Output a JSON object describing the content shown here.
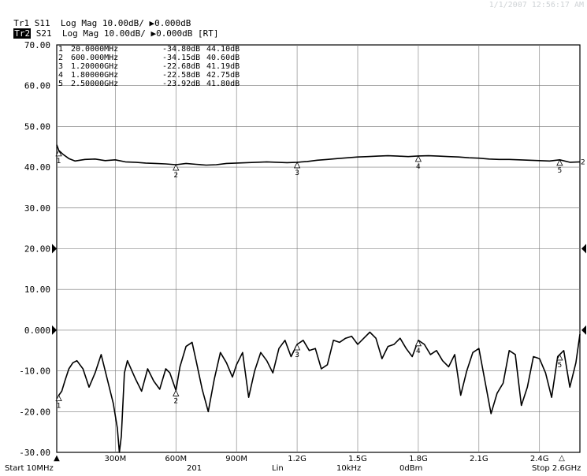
{
  "timestamp": "1/1/2007 12:56:17 AM",
  "header": {
    "trace1": {
      "tag": "Tr1",
      "text": " S11  Log Mag 10.00dB/ ▶0.000dB"
    },
    "trace2": {
      "tag": "Tr2",
      "text": " S21  Log Mag 10.00dB/ ▶0.000dB [RT]"
    }
  },
  "markers_table": [
    {
      "num": "1",
      "freq": "20.0000MHz",
      "v1": "-34.80dB",
      "v2": "44.10dB"
    },
    {
      "num": "2",
      "freq": "600.000MHz",
      "v1": "-34.15dB",
      "v2": "40.60dB"
    },
    {
      "num": "3",
      "freq": "1.20000GHz",
      "v1": "-22.68dB",
      "v2": "41.19dB"
    },
    {
      "num": "4",
      "freq": "1.80000GHz",
      "v1": "-22.58dB",
      "v2": "42.75dB"
    },
    {
      "num": "5",
      "freq": "2.50000GHz",
      "v1": "-23.92dB",
      "v2": "41.80dB"
    }
  ],
  "footer": {
    "start": "Start 10MHz",
    "points": "201",
    "sweep": "Lin",
    "ifbw": "10kHz",
    "power": "0dBm",
    "stop": "Stop 2.6GHz"
  },
  "chart_data": {
    "type": "line",
    "xlim": [
      10,
      2600
    ],
    "ylim": [
      -30,
      70
    ],
    "grid": true,
    "y_ticks": [
      "70.00",
      "60.00",
      "50.00",
      "40.00",
      "30.00",
      "20.00",
      "10.00",
      "0.000",
      "-10.00",
      "-20.00",
      "-30.00"
    ],
    "x_tick_labels": [
      "300M",
      "600M",
      "900M",
      "1.2G",
      "1.5G",
      "1.8G",
      "2.1G",
      "2.4G"
    ],
    "x_tick_values": [
      300,
      600,
      900,
      1200,
      1500,
      1800,
      2100,
      2400
    ],
    "series": [
      {
        "x": [
          10,
          20,
          40,
          70,
          100,
          150,
          200,
          250,
          300,
          350,
          400,
          450,
          500,
          550,
          600,
          650,
          700,
          750,
          800,
          850,
          900,
          950,
          1000,
          1050,
          1100,
          1150,
          1200,
          1250,
          1300,
          1350,
          1400,
          1450,
          1500,
          1550,
          1600,
          1650,
          1700,
          1750,
          1800,
          1850,
          1900,
          1950,
          2000,
          2050,
          2100,
          2150,
          2200,
          2250,
          2300,
          2350,
          2400,
          2450,
          2500,
          2550,
          2600
        ],
        "values": [
          45.5,
          44.1,
          43.2,
          42.1,
          41.5,
          41.9,
          42.0,
          41.6,
          41.8,
          41.3,
          41.2,
          41.0,
          40.9,
          40.8,
          40.6,
          40.9,
          40.7,
          40.5,
          40.6,
          40.9,
          41.0,
          41.1,
          41.2,
          41.3,
          41.2,
          41.1,
          41.19,
          41.4,
          41.7,
          41.9,
          42.1,
          42.3,
          42.5,
          42.6,
          42.7,
          42.8,
          42.7,
          42.6,
          42.75,
          42.8,
          42.7,
          42.6,
          42.5,
          42.3,
          42.2,
          42.0,
          41.9,
          41.9,
          41.8,
          41.7,
          41.6,
          41.5,
          41.8,
          41.2,
          41.3
        ]
      },
      {
        "x": [
          10,
          20,
          35,
          50,
          70,
          90,
          110,
          140,
          170,
          200,
          230,
          260,
          290,
          310,
          320,
          330,
          345,
          360,
          400,
          430,
          460,
          490,
          520,
          550,
          570,
          600,
          620,
          650,
          680,
          700,
          730,
          760,
          790,
          820,
          850,
          880,
          900,
          930,
          960,
          990,
          1020,
          1050,
          1080,
          1110,
          1140,
          1170,
          1200,
          1230,
          1260,
          1290,
          1320,
          1350,
          1380,
          1410,
          1440,
          1470,
          1500,
          1530,
          1560,
          1590,
          1620,
          1650,
          1680,
          1710,
          1740,
          1770,
          1800,
          1830,
          1860,
          1890,
          1920,
          1950,
          1980,
          2010,
          2040,
          2070,
          2100,
          2130,
          2160,
          2190,
          2220,
          2250,
          2280,
          2310,
          2340,
          2370,
          2400,
          2430,
          2460,
          2490,
          2520,
          2550,
          2580,
          2600
        ],
        "values": [
          -17.5,
          -16.0,
          -15.0,
          -12.5,
          -9.5,
          -8.0,
          -7.5,
          -9.5,
          -14.0,
          -10.5,
          -6.0,
          -12.0,
          -18.0,
          -24.0,
          -30.0,
          -26.0,
          -10.5,
          -7.5,
          -12.0,
          -15.0,
          -9.5,
          -12.5,
          -14.5,
          -9.5,
          -10.5,
          -14.8,
          -9.0,
          -4.0,
          -3.0,
          -7.5,
          -14.5,
          -20.0,
          -12.0,
          -5.5,
          -8.0,
          -11.5,
          -8.5,
          -5.5,
          -16.5,
          -10.0,
          -5.5,
          -7.5,
          -10.5,
          -4.5,
          -2.5,
          -6.5,
          -3.5,
          -2.5,
          -5.0,
          -4.5,
          -9.5,
          -8.5,
          -2.5,
          -3.0,
          -2.0,
          -1.5,
          -3.5,
          -2.0,
          -0.5,
          -2.0,
          -7.0,
          -4.0,
          -3.5,
          -2.0,
          -4.5,
          -6.5,
          -2.5,
          -3.5,
          -6.0,
          -5.0,
          -7.5,
          -9.0,
          -6.0,
          -16.0,
          -10.0,
          -5.5,
          -4.5,
          -12.5,
          -20.5,
          -15.5,
          -13.0,
          -5.0,
          -6.0,
          -18.5,
          -14.0,
          -6.5,
          -7.0,
          -10.5,
          -16.5,
          -6.5,
          -5.0,
          -14.0,
          -8.0,
          -1.0
        ]
      }
    ],
    "markers": [
      {
        "num": "1",
        "x": 20,
        "y_top": 44.1,
        "y_bottom": -16.0
      },
      {
        "num": "2",
        "x": 600,
        "y_top": 40.6,
        "y_bottom": -14.8
      },
      {
        "num": "3",
        "x": 1200,
        "y_top": 41.19,
        "y_bottom": -3.5
      },
      {
        "num": "4",
        "x": 1800,
        "y_top": 42.75,
        "y_bottom": -2.5
      },
      {
        "num": "5",
        "x": 2500,
        "y_top": 41.8,
        "y_bottom": -6.0
      }
    ],
    "right_labels": [
      "2"
    ],
    "reference_arrows": [
      20,
      0
    ],
    "start_marker": "▲",
    "stop_marker": "△"
  }
}
